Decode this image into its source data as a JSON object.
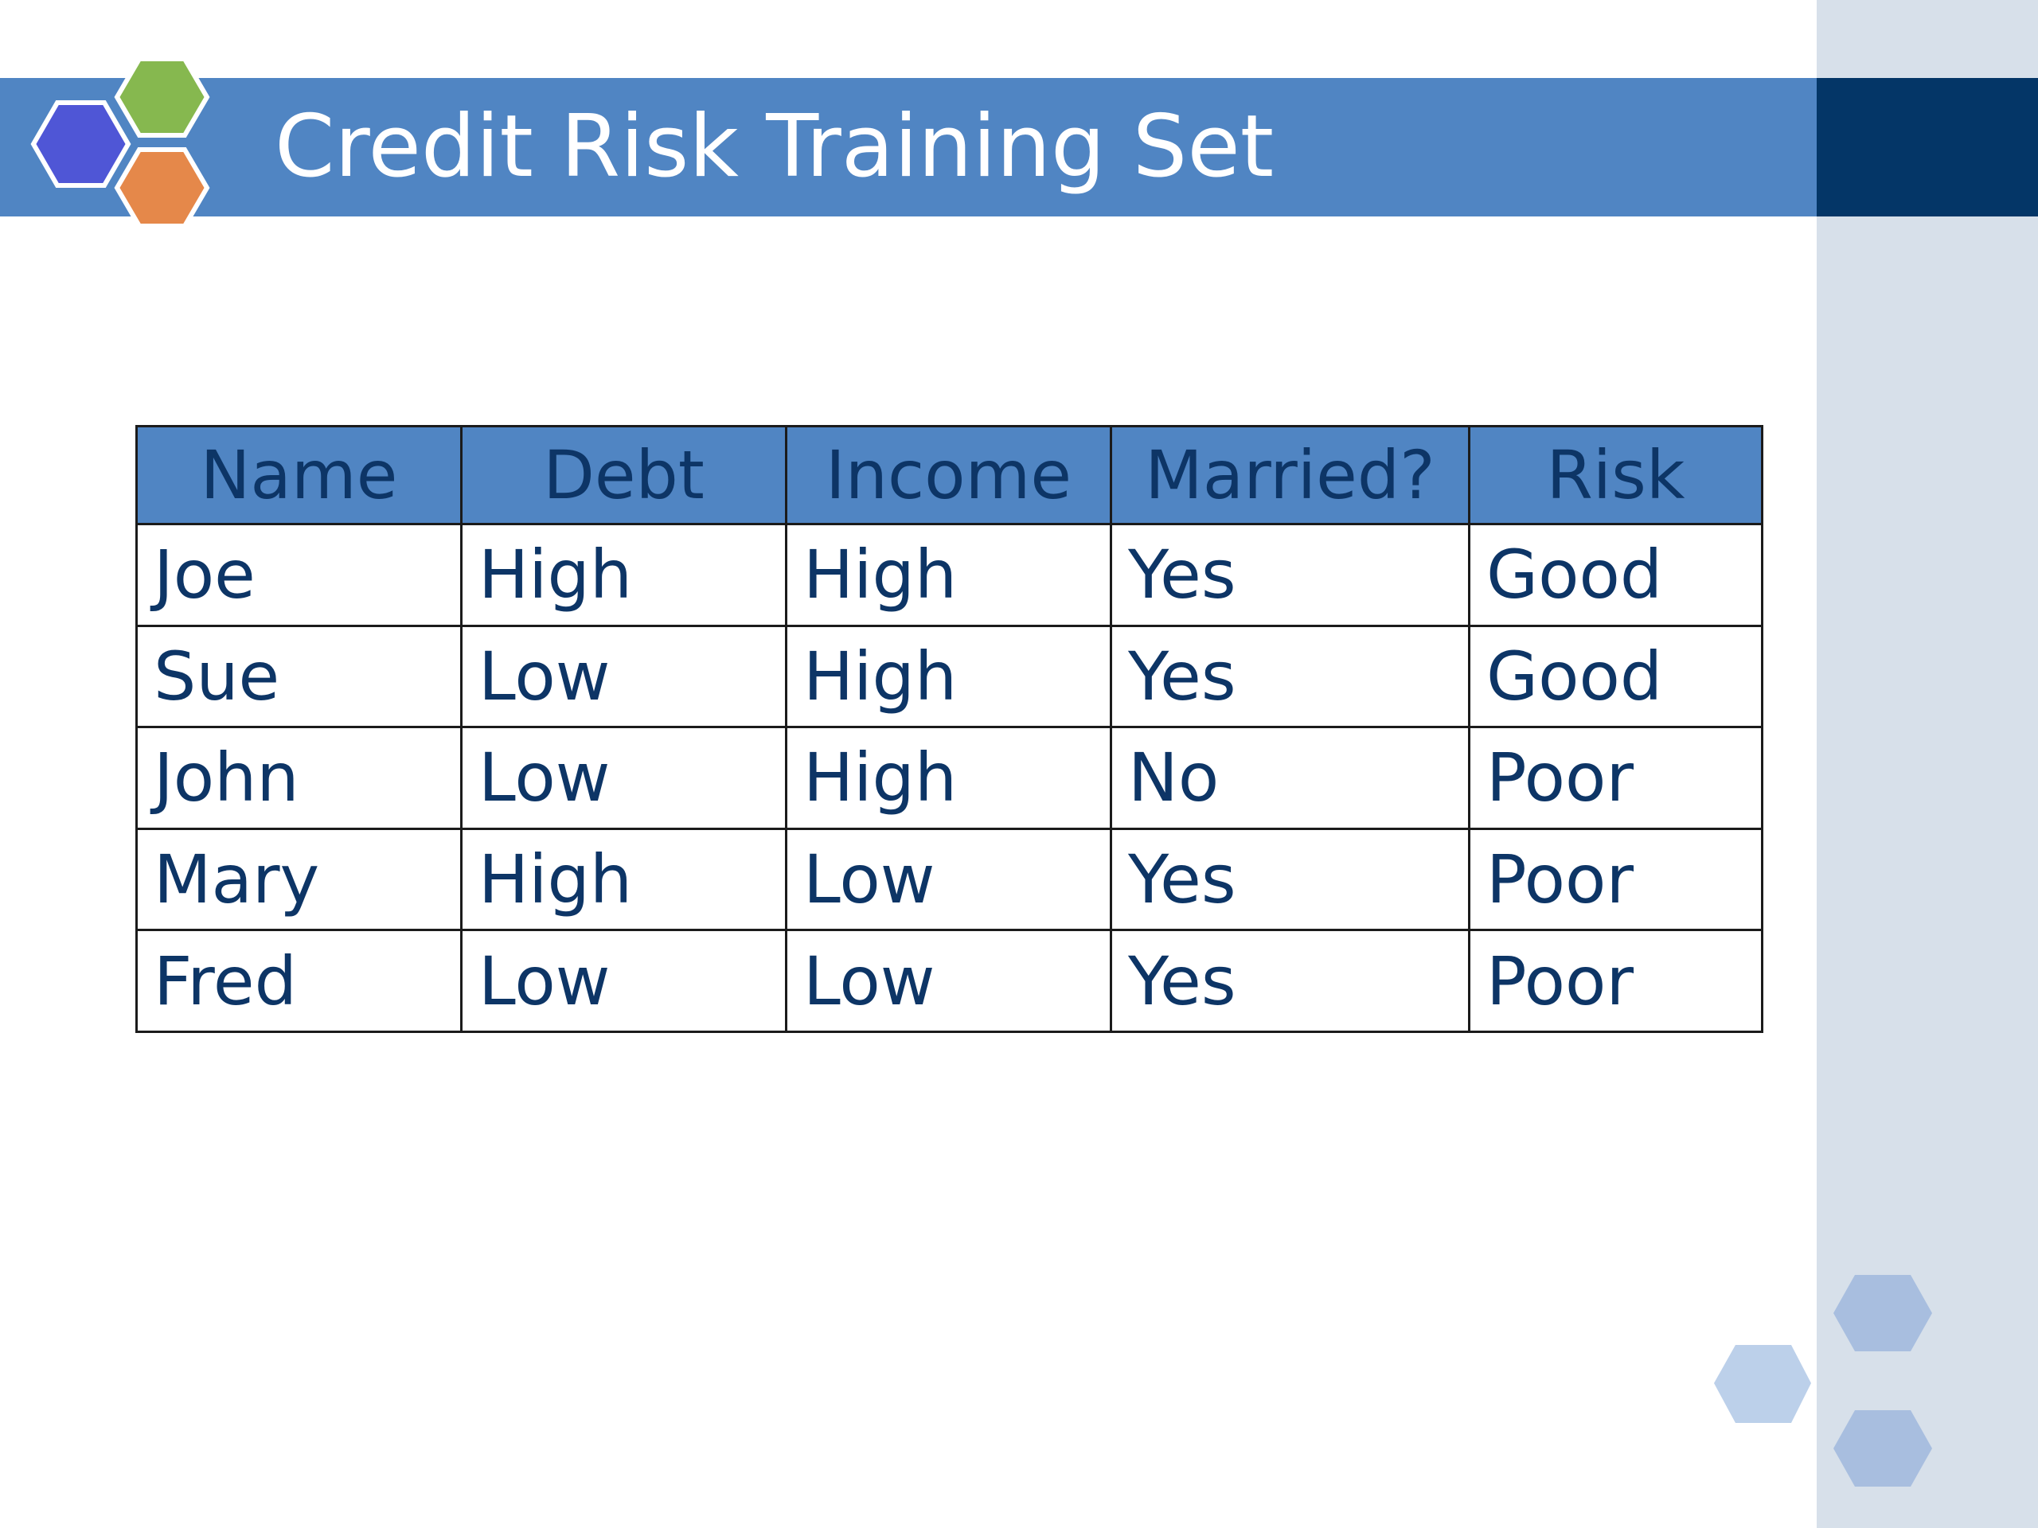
{
  "slide": {
    "title": "Credit Risk Training Set"
  },
  "colors": {
    "title_bar": "#5085c3",
    "title_bar_dark": "#043667",
    "side_panel": "#d7e0ea",
    "text_dark": "#0d3566",
    "hex_blue": "#4f56d6",
    "hex_green": "#86b84f",
    "hex_orange": "#e5884a",
    "hex_light": "#a8bedf"
  },
  "icons": {
    "logo": "hexagon-cluster-icon",
    "corner": "hexagon-cluster-icon"
  },
  "table": {
    "headers": [
      "Name",
      "Debt",
      "Income",
      "Married?",
      "Risk"
    ],
    "rows": [
      [
        "Joe",
        "High",
        "High",
        "Yes",
        "Good"
      ],
      [
        "Sue",
        "Low",
        "High",
        "Yes",
        "Good"
      ],
      [
        "John",
        "Low",
        "High",
        "No",
        "Poor"
      ],
      [
        "Mary",
        "High",
        "Low",
        "Yes",
        "Poor"
      ],
      [
        "Fred",
        "Low",
        "Low",
        "Yes",
        "Poor"
      ]
    ]
  }
}
